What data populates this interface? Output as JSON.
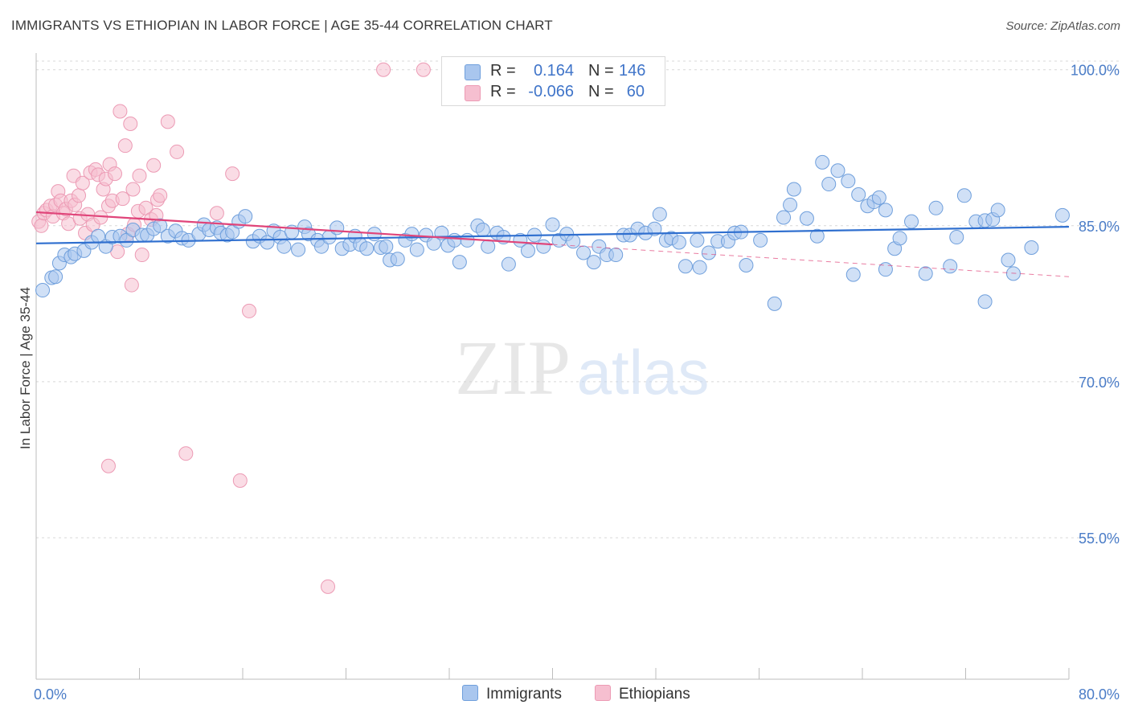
{
  "title": "IMMIGRANTS VS ETHIOPIAN IN LABOR FORCE | AGE 35-44 CORRELATION CHART",
  "source": "Source: ZipAtlas.com",
  "watermark": {
    "zip": "ZIP",
    "atlas": "atlas"
  },
  "colors": {
    "immigrants_fill": "#a9c6ee",
    "immigrants_stroke": "#6f9fdc",
    "immigrants_line": "#2f6fcf",
    "ethiopians_fill": "#f6bfd0",
    "ethiopians_stroke": "#ec9ab4",
    "ethiopians_line": "#e0457a",
    "tick_text": "#4a7cc7",
    "grid": "#d8d8d8"
  },
  "legend_top": {
    "rows": [
      {
        "r_label": "R =",
        "r_value": "0.164",
        "n_label": "N =",
        "n_value": "146"
      },
      {
        "r_label": "R =",
        "r_value": "-0.066",
        "n_label": "N =",
        "n_value": "60"
      }
    ]
  },
  "legend_bottom": {
    "immigrants": "Immigrants",
    "ethiopians": "Ethiopians"
  },
  "chart_data": {
    "type": "scatter",
    "title": "IMMIGRANTS VS ETHIOPIAN IN LABOR FORCE | AGE 35-44 CORRELATION CHART",
    "xlabel": "",
    "ylabel": "In Labor Force | Age 35-44",
    "xlim": [
      0,
      80
    ],
    "ylim": [
      41.4,
      101.6
    ],
    "x_tick_labels": [
      {
        "value": 0,
        "label": "0.0%"
      },
      {
        "value": 80,
        "label": "80.0%"
      }
    ],
    "y_tick_labels": [
      {
        "value": 55,
        "label": "55.0%"
      },
      {
        "value": 70,
        "label": "70.0%"
      },
      {
        "value": 85,
        "label": "85.0%"
      },
      {
        "value": 100,
        "label": "100.0%"
      }
    ],
    "grid": true,
    "legend": "top-center",
    "series": [
      {
        "name": "Immigrants",
        "R": 0.164,
        "N": 146,
        "trend": {
          "x": [
            0,
            80
          ],
          "y": [
            83.3,
            84.9
          ]
        },
        "points": [
          [
            0.5,
            78.8
          ],
          [
            1.2,
            80
          ],
          [
            1.5,
            80.1
          ],
          [
            1.8,
            81.4
          ],
          [
            2.2,
            82.2
          ],
          [
            2.7,
            82.0
          ],
          [
            3.0,
            82.3
          ],
          [
            3.7,
            82.6
          ],
          [
            4.3,
            83.4
          ],
          [
            4.8,
            84.0
          ],
          [
            5.4,
            83.0
          ],
          [
            5.9,
            83.9
          ],
          [
            6.5,
            84.0
          ],
          [
            7.0,
            83.6
          ],
          [
            7.5,
            84.6
          ],
          [
            8.2,
            84.1
          ],
          [
            8.6,
            84.1
          ],
          [
            9.1,
            84.7
          ],
          [
            9.6,
            85.0
          ],
          [
            10.2,
            84.0
          ],
          [
            10.8,
            84.5
          ],
          [
            11.3,
            83.8
          ],
          [
            11.8,
            83.6
          ],
          [
            12.6,
            84.2
          ],
          [
            13.0,
            85.1
          ],
          [
            13.4,
            84.6
          ],
          [
            14.0,
            84.8
          ],
          [
            14.3,
            84.3
          ],
          [
            14.8,
            84.1
          ],
          [
            15.2,
            84.4
          ],
          [
            15.7,
            85.4
          ],
          [
            16.2,
            85.9
          ],
          [
            16.8,
            83.5
          ],
          [
            17.3,
            84.0
          ],
          [
            17.9,
            83.4
          ],
          [
            18.4,
            84.5
          ],
          [
            18.9,
            83.9
          ],
          [
            19.2,
            83.0
          ],
          [
            19.8,
            84.4
          ],
          [
            20.3,
            82.7
          ],
          [
            20.8,
            84.9
          ],
          [
            21.1,
            84.2
          ],
          [
            21.8,
            83.6
          ],
          [
            22.1,
            83.0
          ],
          [
            22.7,
            83.9
          ],
          [
            23.3,
            84.8
          ],
          [
            23.7,
            82.8
          ],
          [
            24.3,
            83.2
          ],
          [
            24.7,
            84.0
          ],
          [
            25.1,
            83.2
          ],
          [
            25.6,
            82.8
          ],
          [
            26.2,
            84.2
          ],
          [
            26.7,
            82.9
          ],
          [
            27.1,
            83.0
          ],
          [
            27.4,
            81.7
          ],
          [
            28.0,
            81.8
          ],
          [
            28.6,
            83.6
          ],
          [
            29.1,
            84.2
          ],
          [
            29.5,
            82.7
          ],
          [
            30.2,
            84.1
          ],
          [
            30.8,
            83.3
          ],
          [
            31.4,
            84.3
          ],
          [
            31.9,
            83.1
          ],
          [
            32.4,
            83.6
          ],
          [
            32.8,
            81.5
          ],
          [
            33.4,
            83.6
          ],
          [
            34.2,
            85.0
          ],
          [
            34.6,
            84.6
          ],
          [
            35.0,
            83.0
          ],
          [
            35.7,
            84.3
          ],
          [
            36.2,
            83.9
          ],
          [
            36.6,
            81.3
          ],
          [
            37.5,
            83.6
          ],
          [
            38.1,
            82.6
          ],
          [
            38.6,
            84.1
          ],
          [
            39.3,
            83.0
          ],
          [
            40.0,
            85.1
          ],
          [
            40.5,
            83.6
          ],
          [
            41.1,
            84.2
          ],
          [
            41.6,
            83.5
          ],
          [
            42.4,
            82.4
          ],
          [
            43.2,
            81.5
          ],
          [
            43.6,
            83.0
          ],
          [
            44.2,
            82.2
          ],
          [
            44.9,
            82.2
          ],
          [
            45.5,
            84.1
          ],
          [
            46.0,
            84.1
          ],
          [
            46.6,
            84.7
          ],
          [
            47.2,
            84.3
          ],
          [
            47.9,
            84.7
          ],
          [
            48.3,
            86.1
          ],
          [
            48.8,
            83.6
          ],
          [
            49.2,
            83.8
          ],
          [
            49.8,
            83.4
          ],
          [
            50.3,
            81.1
          ],
          [
            51.2,
            83.6
          ],
          [
            51.4,
            81.0
          ],
          [
            52.1,
            82.4
          ],
          [
            52.8,
            83.5
          ],
          [
            53.6,
            83.5
          ],
          [
            54.1,
            84.3
          ],
          [
            54.6,
            84.4
          ],
          [
            55.0,
            81.2
          ],
          [
            56.1,
            83.6
          ],
          [
            57.2,
            77.5
          ],
          [
            57.9,
            85.8
          ],
          [
            58.4,
            87.0
          ],
          [
            58.7,
            88.5
          ],
          [
            59.7,
            85.7
          ],
          [
            60.5,
            84.0
          ],
          [
            60.9,
            91.1
          ],
          [
            61.4,
            89.0
          ],
          [
            62.1,
            90.3
          ],
          [
            62.9,
            89.3
          ],
          [
            63.3,
            80.3
          ],
          [
            63.7,
            88.0
          ],
          [
            64.4,
            86.9
          ],
          [
            64.9,
            87.3
          ],
          [
            65.3,
            87.7
          ],
          [
            65.8,
            86.5
          ],
          [
            65.8,
            80.8
          ],
          [
            66.5,
            82.8
          ],
          [
            66.9,
            83.8
          ],
          [
            67.8,
            85.4
          ],
          [
            68.9,
            80.4
          ],
          [
            69.7,
            86.7
          ],
          [
            70.8,
            81.1
          ],
          [
            71.3,
            83.9
          ],
          [
            71.9,
            87.9
          ],
          [
            72.8,
            85.4
          ],
          [
            73.5,
            77.7
          ],
          [
            73.5,
            85.5
          ],
          [
            74.1,
            85.6
          ],
          [
            74.5,
            86.5
          ],
          [
            75.3,
            81.7
          ],
          [
            75.7,
            80.4
          ],
          [
            77.1,
            82.9
          ],
          [
            79.5,
            86.0
          ]
        ]
      },
      {
        "name": "Ethiopians",
        "R": -0.066,
        "N": 60,
        "trend": {
          "x": [
            0,
            80
          ],
          "y": [
            86.3,
            80.1
          ]
        },
        "points": [
          [
            0.2,
            85.4
          ],
          [
            0.4,
            85.0
          ],
          [
            0.6,
            86.2
          ],
          [
            0.8,
            86.5
          ],
          [
            1.1,
            86.9
          ],
          [
            1.3,
            85.9
          ],
          [
            1.5,
            87.0
          ],
          [
            1.7,
            88.3
          ],
          [
            1.9,
            87.4
          ],
          [
            2.1,
            86.2
          ],
          [
            2.3,
            86.6
          ],
          [
            2.5,
            85.2
          ],
          [
            2.7,
            87.4
          ],
          [
            2.9,
            89.8
          ],
          [
            3.0,
            87.0
          ],
          [
            3.3,
            87.9
          ],
          [
            3.4,
            85.7
          ],
          [
            3.6,
            89.1
          ],
          [
            3.8,
            84.3
          ],
          [
            4.0,
            86.1
          ],
          [
            4.2,
            90.1
          ],
          [
            4.4,
            85.1
          ],
          [
            4.6,
            90.4
          ],
          [
            4.8,
            89.9
          ],
          [
            5.0,
            85.8
          ],
          [
            5.2,
            88.5
          ],
          [
            5.4,
            89.5
          ],
          [
            5.6,
            86.9
          ],
          [
            5.7,
            90.9
          ],
          [
            5.9,
            87.4
          ],
          [
            6.1,
            90.0
          ],
          [
            6.3,
            82.5
          ],
          [
            6.5,
            96.0
          ],
          [
            6.7,
            87.6
          ],
          [
            6.9,
            92.7
          ],
          [
            7.1,
            84.2
          ],
          [
            7.3,
            94.8
          ],
          [
            7.4,
            79.3
          ],
          [
            7.5,
            88.5
          ],
          [
            7.6,
            85.1
          ],
          [
            7.9,
            86.4
          ],
          [
            8.0,
            89.8
          ],
          [
            8.2,
            82.2
          ],
          [
            8.5,
            86.7
          ],
          [
            8.9,
            85.6
          ],
          [
            9.1,
            90.8
          ],
          [
            9.3,
            86.0
          ],
          [
            9.4,
            87.5
          ],
          [
            9.6,
            87.9
          ],
          [
            10.2,
            95.0
          ],
          [
            10.9,
            92.1
          ],
          [
            11.6,
            63.1
          ],
          [
            14.0,
            86.2
          ],
          [
            15.2,
            90.0
          ],
          [
            15.8,
            60.5
          ],
          [
            16.5,
            76.8
          ],
          [
            22.6,
            50.3
          ],
          [
            26.9,
            100
          ],
          [
            30.0,
            100
          ],
          [
            5.6,
            61.9
          ]
        ]
      }
    ]
  }
}
